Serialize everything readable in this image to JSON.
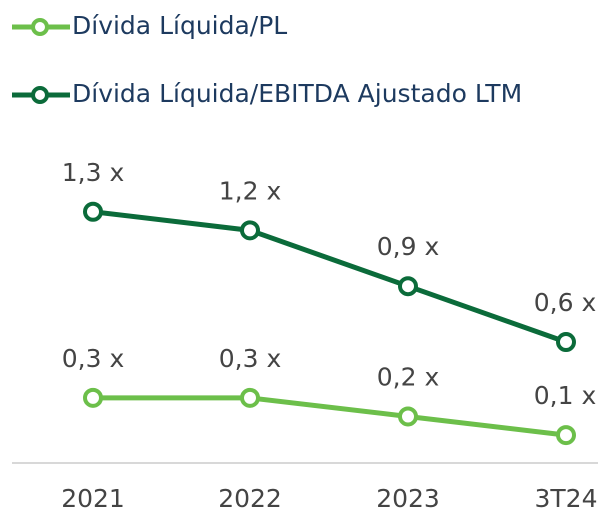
{
  "chart_data": {
    "type": "line",
    "categories": [
      "2021",
      "2022",
      "2023",
      "3T24"
    ],
    "series": [
      {
        "name": "Dívida Líquida/PL",
        "color": "#6cbf4a",
        "values": [
          0.3,
          0.3,
          0.2,
          0.1
        ],
        "value_labels": [
          "0,3 x",
          "0,3 x",
          "0,2 x",
          "0,1 x"
        ]
      },
      {
        "name": "Dívida Líquida/EBITDA Ajustado LTM",
        "color": "#0b6b3a",
        "values": [
          1.3,
          1.2,
          0.9,
          0.6
        ],
        "value_labels": [
          "1,3 x",
          "1,2 x",
          "0,9 x",
          "0,6 x"
        ]
      }
    ],
    "ylim": [
      -0.05,
      1.75
    ]
  }
}
